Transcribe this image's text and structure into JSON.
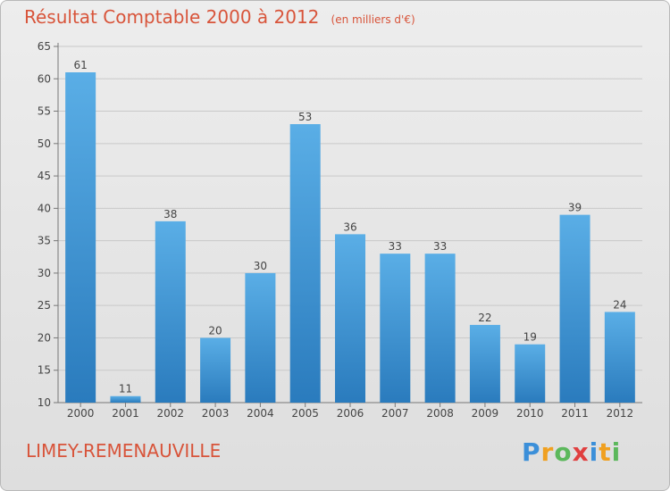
{
  "chart_data": {
    "type": "bar",
    "title": "Résultat Comptable 2000 à 2012",
    "subtitle": "(en milliers d'€)",
    "categories": [
      "2000",
      "2001",
      "2002",
      "2003",
      "2004",
      "2005",
      "2006",
      "2007",
      "2008",
      "2009",
      "2010",
      "2011",
      "2012"
    ],
    "values": [
      61,
      11,
      38,
      20,
      30,
      53,
      36,
      33,
      33,
      22,
      19,
      39,
      24
    ],
    "ylim": [
      10,
      65
    ],
    "yticks": [
      10,
      15,
      20,
      25,
      30,
      35,
      40,
      45,
      50,
      55,
      60,
      65
    ],
    "xlabel": "",
    "ylabel": "",
    "grid": true,
    "bar_color_top": "#5aaee6",
    "bar_color_bottom": "#2a7bbd",
    "label_color": "#d8543a"
  },
  "commune": "LIMEY-REMENAUVILLE",
  "logo": {
    "letters": [
      "P",
      "r",
      "o",
      "x",
      "i",
      "t",
      "i"
    ],
    "colors": [
      "#3b8fd9",
      "#f0a020",
      "#5cb85c",
      "#e04040",
      "#3b8fd9",
      "#f0a020",
      "#5cb85c"
    ]
  }
}
